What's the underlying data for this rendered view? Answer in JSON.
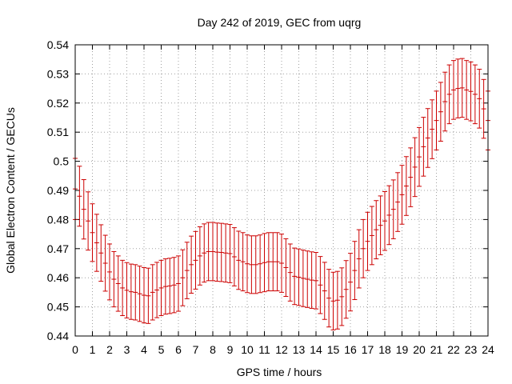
{
  "chart_data": {
    "type": "scatter",
    "title": "Day 242 of 2019, GEC from uqrg",
    "xlabel": "GPS time / hours",
    "ylabel": "Global Electron Content / GECUs",
    "xlim": [
      0,
      24
    ],
    "ylim": [
      0.44,
      0.54
    ],
    "xticks": [
      "0",
      "1",
      "2",
      "3",
      "4",
      "5",
      "6",
      "7",
      "8",
      "9",
      "10",
      "11",
      "12",
      "13",
      "14",
      "15",
      "16",
      "17",
      "18",
      "19",
      "20",
      "21",
      "22",
      "23",
      "24"
    ],
    "yticks": [
      "0.44",
      "0.45",
      "0.46",
      "0.47",
      "0.48",
      "0.49",
      "0.5",
      "0.51",
      "0.52",
      "0.53",
      "0.54"
    ],
    "grid": true,
    "error_bars": true,
    "series": [
      {
        "color": "#cc0000",
        "x": [
          0.0,
          0.25,
          0.5,
          0.75,
          1.0,
          1.25,
          1.5,
          1.75,
          2.0,
          2.25,
          2.5,
          2.75,
          3.0,
          3.25,
          3.5,
          3.75,
          4.0,
          4.25,
          4.5,
          4.75,
          5.0,
          5.25,
          5.5,
          5.75,
          6.0,
          6.25,
          6.5,
          6.75,
          7.0,
          7.25,
          7.5,
          7.75,
          8.0,
          8.25,
          8.5,
          8.75,
          9.0,
          9.25,
          9.5,
          9.75,
          10.0,
          10.25,
          10.5,
          10.75,
          11.0,
          11.25,
          11.5,
          11.75,
          12.0,
          12.25,
          12.5,
          12.75,
          13.0,
          13.25,
          13.5,
          13.75,
          14.0,
          14.25,
          14.5,
          14.75,
          15.0,
          15.25,
          15.5,
          15.75,
          16.0,
          16.25,
          16.5,
          16.75,
          17.0,
          17.25,
          17.5,
          17.75,
          18.0,
          18.25,
          18.5,
          18.75,
          19.0,
          19.25,
          19.5,
          19.75,
          20.0,
          20.25,
          20.5,
          20.75,
          21.0,
          21.25,
          21.5,
          21.75,
          22.0,
          22.25,
          22.5,
          22.75,
          23.0,
          23.25,
          23.5,
          23.75,
          24.0
        ],
        "y": [
          0.4905,
          0.488,
          0.4835,
          0.4795,
          0.4755,
          0.472,
          0.4685,
          0.465,
          0.462,
          0.4595,
          0.458,
          0.4565,
          0.4557,
          0.4552,
          0.455,
          0.4545,
          0.454,
          0.4538,
          0.455,
          0.4558,
          0.4565,
          0.457,
          0.4572,
          0.4575,
          0.458,
          0.46,
          0.4625,
          0.4645,
          0.466,
          0.4675,
          0.4685,
          0.469,
          0.469,
          0.4688,
          0.4687,
          0.4685,
          0.4683,
          0.4672,
          0.466,
          0.4655,
          0.4648,
          0.4645,
          0.4645,
          0.4648,
          0.4652,
          0.4655,
          0.4655,
          0.4655,
          0.465,
          0.4635,
          0.4618,
          0.4605,
          0.4602,
          0.4598,
          0.4595,
          0.4592,
          0.459,
          0.4575,
          0.4555,
          0.453,
          0.452,
          0.4523,
          0.4535,
          0.456,
          0.4585,
          0.4625,
          0.4665,
          0.47,
          0.4725,
          0.4745,
          0.4765,
          0.478,
          0.4795,
          0.4815,
          0.4835,
          0.486,
          0.4885,
          0.4915,
          0.4945,
          0.498,
          0.5015,
          0.505,
          0.508,
          0.511,
          0.514,
          0.517,
          0.5205,
          0.523,
          0.5245,
          0.525,
          0.5252,
          0.5245,
          0.524,
          0.523,
          0.5215,
          0.518,
          0.514
        ],
        "err": [
          0.0105,
          0.0103,
          0.0102,
          0.01,
          0.0099,
          0.0098,
          0.0097,
          0.0096,
          0.0096,
          0.0095,
          0.0095,
          0.0095,
          0.0095,
          0.0095,
          0.0095,
          0.0095,
          0.0095,
          0.0095,
          0.0095,
          0.0095,
          0.0095,
          0.0095,
          0.0095,
          0.0095,
          0.0095,
          0.0096,
          0.0097,
          0.0098,
          0.0099,
          0.01,
          0.01,
          0.01,
          0.01,
          0.01,
          0.01,
          0.01,
          0.01,
          0.01,
          0.01,
          0.01,
          0.0099,
          0.0099,
          0.0099,
          0.0099,
          0.01,
          0.01,
          0.01,
          0.01,
          0.01,
          0.0099,
          0.0098,
          0.0097,
          0.0097,
          0.0097,
          0.0097,
          0.0097,
          0.0097,
          0.0098,
          0.0098,
          0.0099,
          0.0099,
          0.0099,
          0.0099,
          0.0099,
          0.0099,
          0.01,
          0.01,
          0.01,
          0.01,
          0.01,
          0.01,
          0.0101,
          0.0101,
          0.0101,
          0.0101,
          0.0101,
          0.0101,
          0.0101,
          0.0101,
          0.0101,
          0.0101,
          0.0101,
          0.0101,
          0.0101,
          0.0101,
          0.0101,
          0.0101,
          0.0101,
          0.0101,
          0.0101,
          0.0101,
          0.0101,
          0.0101,
          0.0101,
          0.0101,
          0.0101,
          0.0101
        ]
      }
    ]
  }
}
